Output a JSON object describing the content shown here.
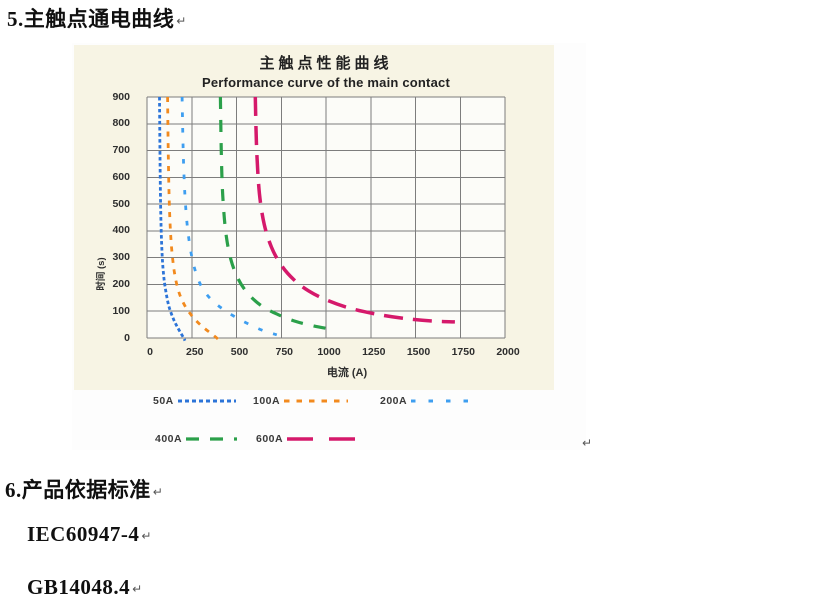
{
  "document": {
    "heading5": "5.主触点通电曲线",
    "heading6": "6.产品依据标准",
    "standards": [
      "IEC60947-4",
      "GB14048.4"
    ],
    "paragraph_mark": "↵"
  },
  "chart": {
    "title": "主触点性能曲线",
    "subtitle": "Performance curve of the main contact",
    "xlabel": "电流 (A)",
    "ylabel": "时间 (s)",
    "x_ticks": [
      "0",
      "250",
      "500",
      "750",
      "1000",
      "1250",
      "1500",
      "1750",
      "2000"
    ],
    "y_ticks": [
      "900",
      "800",
      "700",
      "600",
      "500",
      "400",
      "300",
      "200",
      "100",
      "0"
    ],
    "colors": {
      "panel_bg": "#f7f4e4",
      "plot_bg": "#fcfcf8",
      "grid": "#7d7d7d"
    }
  },
  "chart_data": {
    "type": "line",
    "title": "主触点性能曲线 / Performance curve of the main contact",
    "xlabel": "电流 (A)",
    "ylabel": "时间 (s)",
    "xlim": [
      0,
      2000
    ],
    "ylim": [
      0,
      900
    ],
    "x_tick_step": 250,
    "y_tick_step": 100,
    "grid": true,
    "legend_position": "below-chart, two rows",
    "series": [
      {
        "name": "50A",
        "color": "#2c74d8",
        "width": 2.8,
        "dash": "3.5 2.5",
        "sample_dash": "4 3",
        "sample_len": 58,
        "points": [
          [
            70,
            900
          ],
          [
            73,
            640
          ],
          [
            77,
            460
          ],
          [
            83,
            330
          ],
          [
            92,
            240
          ],
          [
            105,
            175
          ],
          [
            122,
            120
          ],
          [
            145,
            75
          ],
          [
            172,
            38
          ],
          [
            205,
            0
          ],
          [
            212,
            -10
          ]
        ]
      },
      {
        "name": "100A",
        "color": "#f28a1e",
        "width": 2.8,
        "dash": "5 6.5",
        "sample_dash": "5.5 7",
        "sample_len": 64,
        "points": [
          [
            115,
            900
          ],
          [
            120,
            640
          ],
          [
            127,
            460
          ],
          [
            137,
            340
          ],
          [
            152,
            250
          ],
          [
            172,
            185
          ],
          [
            200,
            135
          ],
          [
            240,
            92
          ],
          [
            300,
            48
          ],
          [
            390,
            0
          ],
          [
            398,
            -10
          ]
        ]
      },
      {
        "name": "200A",
        "color": "#3e9ef0",
        "width": 2.8,
        "dash": "4.5 11",
        "sample_dash": "4.5 13",
        "sample_len": 68,
        "points": [
          [
            196,
            900
          ],
          [
            204,
            660
          ],
          [
            215,
            500
          ],
          [
            232,
            380
          ],
          [
            258,
            280
          ],
          [
            295,
            205
          ],
          [
            350,
            150
          ],
          [
            430,
            105
          ],
          [
            530,
            65
          ],
          [
            640,
            30
          ],
          [
            725,
            12
          ]
        ]
      },
      {
        "name": "400A",
        "color": "#2ba04a",
        "width": 3.2,
        "dash": "12 11",
        "sample_dash": "13 11 13 11 3 60",
        "sample_len": 60,
        "points": [
          [
            410,
            900
          ],
          [
            416,
            660
          ],
          [
            426,
            500
          ],
          [
            443,
            380
          ],
          [
            470,
            290
          ],
          [
            510,
            220
          ],
          [
            565,
            165
          ],
          [
            640,
            120
          ],
          [
            730,
            88
          ],
          [
            830,
            62
          ],
          [
            930,
            45
          ],
          [
            1040,
            32
          ]
        ]
      },
      {
        "name": "600A",
        "color": "#d5196b",
        "width": 3.5,
        "dash": "19 10",
        "sample_dash": "26 16",
        "sample_len": 74,
        "points": [
          [
            605,
            900
          ],
          [
            613,
            700
          ],
          [
            628,
            540
          ],
          [
            655,
            425
          ],
          [
            695,
            340
          ],
          [
            750,
            272
          ],
          [
            820,
            218
          ],
          [
            905,
            175
          ],
          [
            1010,
            140
          ],
          [
            1140,
            110
          ],
          [
            1290,
            88
          ],
          [
            1450,
            72
          ],
          [
            1600,
            63
          ],
          [
            1720,
            60
          ]
        ]
      }
    ]
  }
}
